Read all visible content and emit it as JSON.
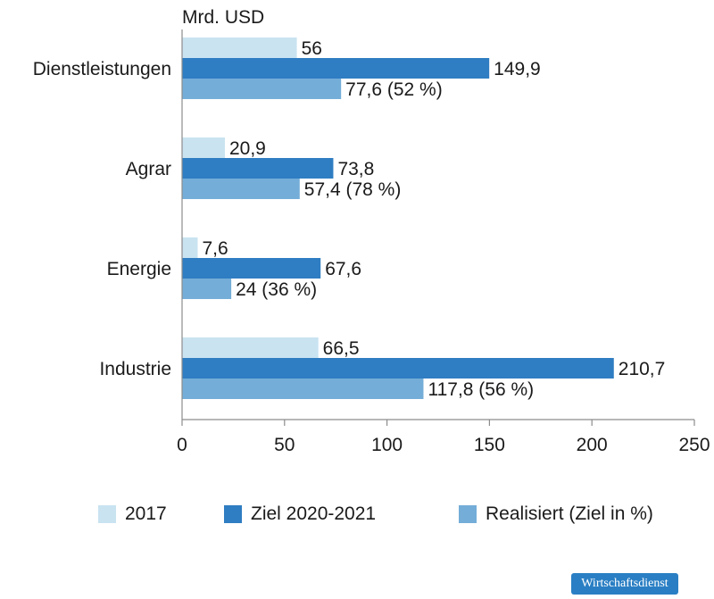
{
  "source": "Wirtschaftsdienst",
  "colors": {
    "s2017": "#c9e3f1",
    "ziel": "#2f7dc2",
    "realisiert": "#74add8",
    "axis": "#8c8c8c",
    "text": "#1a1a1a"
  },
  "legend": {
    "items": [
      {
        "label": "2017",
        "color": "#c9e3f1"
      },
      {
        "label": "Ziel 2020-2021",
        "color": "#2f7dc2"
      },
      {
        "label": "Realisiert (Ziel in %)",
        "color": "#74add8"
      }
    ]
  },
  "chart_data": {
    "type": "bar",
    "orientation": "horizontal",
    "unit_label": "Mrd. USD",
    "categories": [
      "Dienstleistungen",
      "Agrar",
      "Energie",
      "Industrie"
    ],
    "series": [
      {
        "name": "2017",
        "values": [
          56,
          20.9,
          7.6,
          66.5
        ],
        "labels": [
          "56",
          "20,9",
          "7,6",
          "66,5"
        ]
      },
      {
        "name": "Ziel 2020-2021",
        "values": [
          149.9,
          73.8,
          67.6,
          210.7
        ],
        "labels": [
          "149,9",
          "73,8",
          "67,6",
          "210,7"
        ]
      },
      {
        "name": "Realisiert (Ziel in %)",
        "values": [
          77.6,
          57.4,
          24,
          117.8
        ],
        "labels": [
          "77,6 (52 %)",
          "57,4 (78 %)",
          "24 (36 %)",
          "117,8 (56 %)"
        ]
      }
    ],
    "xlim": [
      0,
      250
    ],
    "xticks": [
      "0",
      "50",
      "100",
      "150",
      "200",
      "250"
    ],
    "grid": false,
    "legend_position": "bottom"
  }
}
